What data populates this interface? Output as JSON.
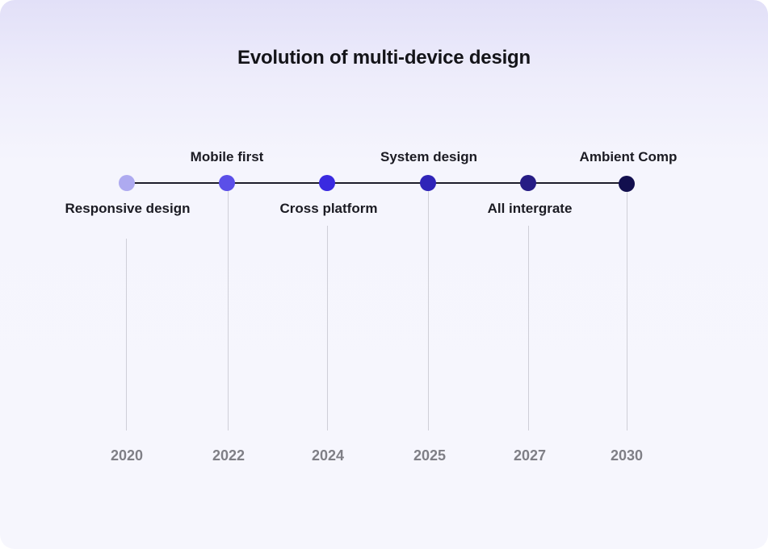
{
  "title": "Evolution of multi-device design",
  "milestones": [
    {
      "year": "2020",
      "label": "Responsive design",
      "position": "below",
      "color": "#aeaaf0"
    },
    {
      "year": "2022",
      "label": "Mobile first",
      "position": "above",
      "color": "#5b4fe8"
    },
    {
      "year": "2024",
      "label": "Cross platform",
      "position": "below",
      "color": "#3a2ae0"
    },
    {
      "year": "2025",
      "label": "System design",
      "position": "above",
      "color": "#2f24b8"
    },
    {
      "year": "2027",
      "label": "All intergrate",
      "position": "below",
      "color": "#261c85"
    },
    {
      "year": "2030",
      "label": "Ambient Comp",
      "position": "above",
      "color": "#120f4e"
    }
  ]
}
